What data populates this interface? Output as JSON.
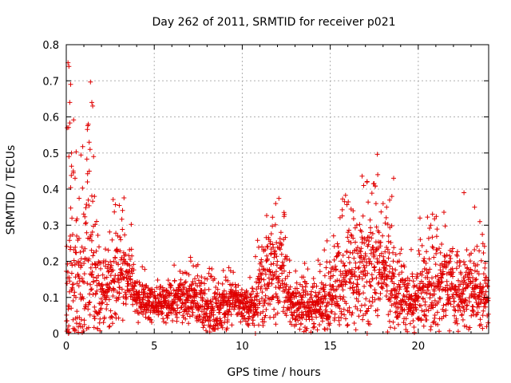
{
  "chart_data": {
    "type": "scatter",
    "title": "Day 262 of 2011, SRMTID for receiver p021",
    "xlabel": "GPS time / hours",
    "ylabel": "SRMTID / TECUs",
    "xlim": [
      0,
      24
    ],
    "ylim": [
      0,
      0.8
    ],
    "x_ticks": [
      0,
      5,
      10,
      15,
      20
    ],
    "y_ticks": [
      0,
      0.1,
      0.2,
      0.3,
      0.4,
      0.5,
      0.6,
      0.7,
      0.8
    ],
    "x_tick_labels": [
      "0",
      "5",
      "10",
      "15",
      "20"
    ],
    "y_tick_labels": [
      "0",
      "0.1",
      "0.2",
      "0.3",
      "0.4",
      "0.5",
      "0.6",
      "0.7",
      "0.8"
    ],
    "grid": true,
    "marker": "+",
    "color": "#e00000",
    "envelope": [
      {
        "t": 0.0,
        "base": 0.1,
        "spread": 0.2
      },
      {
        "t": 0.2,
        "base": 0.2,
        "spread": 0.45
      },
      {
        "t": 0.5,
        "base": 0.15,
        "spread": 0.3
      },
      {
        "t": 0.9,
        "base": 0.15,
        "spread": 0.25
      },
      {
        "t": 1.3,
        "base": 0.2,
        "spread": 0.35
      },
      {
        "t": 1.6,
        "base": 0.15,
        "spread": 0.25
      },
      {
        "t": 2.0,
        "base": 0.12,
        "spread": 0.12
      },
      {
        "t": 2.7,
        "base": 0.14,
        "spread": 0.15
      },
      {
        "t": 3.2,
        "base": 0.17,
        "spread": 0.14
      },
      {
        "t": 3.6,
        "base": 0.18,
        "spread": 0.12
      },
      {
        "t": 4.0,
        "base": 0.09,
        "spread": 0.07
      },
      {
        "t": 5.0,
        "base": 0.08,
        "spread": 0.05
      },
      {
        "t": 6.0,
        "base": 0.09,
        "spread": 0.07
      },
      {
        "t": 7.0,
        "base": 0.1,
        "spread": 0.08
      },
      {
        "t": 8.0,
        "base": 0.07,
        "spread": 0.07
      },
      {
        "t": 9.0,
        "base": 0.08,
        "spread": 0.08
      },
      {
        "t": 9.8,
        "base": 0.09,
        "spread": 0.06
      },
      {
        "t": 10.5,
        "base": 0.07,
        "spread": 0.06
      },
      {
        "t": 11.0,
        "base": 0.13,
        "spread": 0.13
      },
      {
        "t": 11.7,
        "base": 0.17,
        "spread": 0.15
      },
      {
        "t": 12.3,
        "base": 0.15,
        "spread": 0.14
      },
      {
        "t": 12.8,
        "base": 0.08,
        "spread": 0.07
      },
      {
        "t": 13.5,
        "base": 0.07,
        "spread": 0.08
      },
      {
        "t": 14.5,
        "base": 0.08,
        "spread": 0.08
      },
      {
        "t": 15.3,
        "base": 0.12,
        "spread": 0.14
      },
      {
        "t": 16.0,
        "base": 0.15,
        "spread": 0.17
      },
      {
        "t": 17.0,
        "base": 0.17,
        "spread": 0.18
      },
      {
        "t": 18.0,
        "base": 0.2,
        "spread": 0.2
      },
      {
        "t": 18.8,
        "base": 0.12,
        "spread": 0.13
      },
      {
        "t": 19.5,
        "base": 0.08,
        "spread": 0.09
      },
      {
        "t": 20.5,
        "base": 0.12,
        "spread": 0.13
      },
      {
        "t": 21.5,
        "base": 0.13,
        "spread": 0.13
      },
      {
        "t": 22.5,
        "base": 0.1,
        "spread": 0.12
      },
      {
        "t": 23.3,
        "base": 0.12,
        "spread": 0.12
      },
      {
        "t": 24.0,
        "base": 0.09,
        "spread": 0.1
      }
    ],
    "highlight_points": [
      {
        "x": 0.1,
        "y": 0.75
      },
      {
        "x": 0.15,
        "y": 0.74
      },
      {
        "x": 0.05,
        "y": 0.57
      },
      {
        "x": 0.2,
        "y": 0.64
      },
      {
        "x": 0.25,
        "y": 0.69
      },
      {
        "x": 0.3,
        "y": 0.5
      },
      {
        "x": 0.15,
        "y": 0.49
      },
      {
        "x": 0.4,
        "y": 0.45
      },
      {
        "x": 0.5,
        "y": 0.43
      },
      {
        "x": 1.25,
        "y": 0.58
      },
      {
        "x": 1.3,
        "y": 0.53
      },
      {
        "x": 1.35,
        "y": 0.51
      },
      {
        "x": 1.45,
        "y": 0.64
      },
      {
        "x": 1.5,
        "y": 0.63
      },
      {
        "x": 1.55,
        "y": 0.49
      },
      {
        "x": 1.2,
        "y": 0.42
      },
      {
        "x": 1.6,
        "y": 0.38
      },
      {
        "x": 11.9,
        "y": 0.36
      },
      {
        "x": 12.4,
        "y": 0.33
      },
      {
        "x": 16.3,
        "y": 0.34
      },
      {
        "x": 16.9,
        "y": 0.41
      },
      {
        "x": 17.7,
        "y": 0.44
      },
      {
        "x": 17.6,
        "y": 0.36
      },
      {
        "x": 18.6,
        "y": 0.43
      },
      {
        "x": 18.5,
        "y": 0.38
      },
      {
        "x": 18.2,
        "y": 0.35
      },
      {
        "x": 20.1,
        "y": 0.32
      },
      {
        "x": 22.6,
        "y": 0.39
      },
      {
        "x": 23.2,
        "y": 0.35
      },
      {
        "x": 23.5,
        "y": 0.31
      },
      {
        "x": 10.75,
        "y": 0.0
      },
      {
        "x": 17.1,
        "y": 0.0
      }
    ],
    "n_points": 2600
  }
}
